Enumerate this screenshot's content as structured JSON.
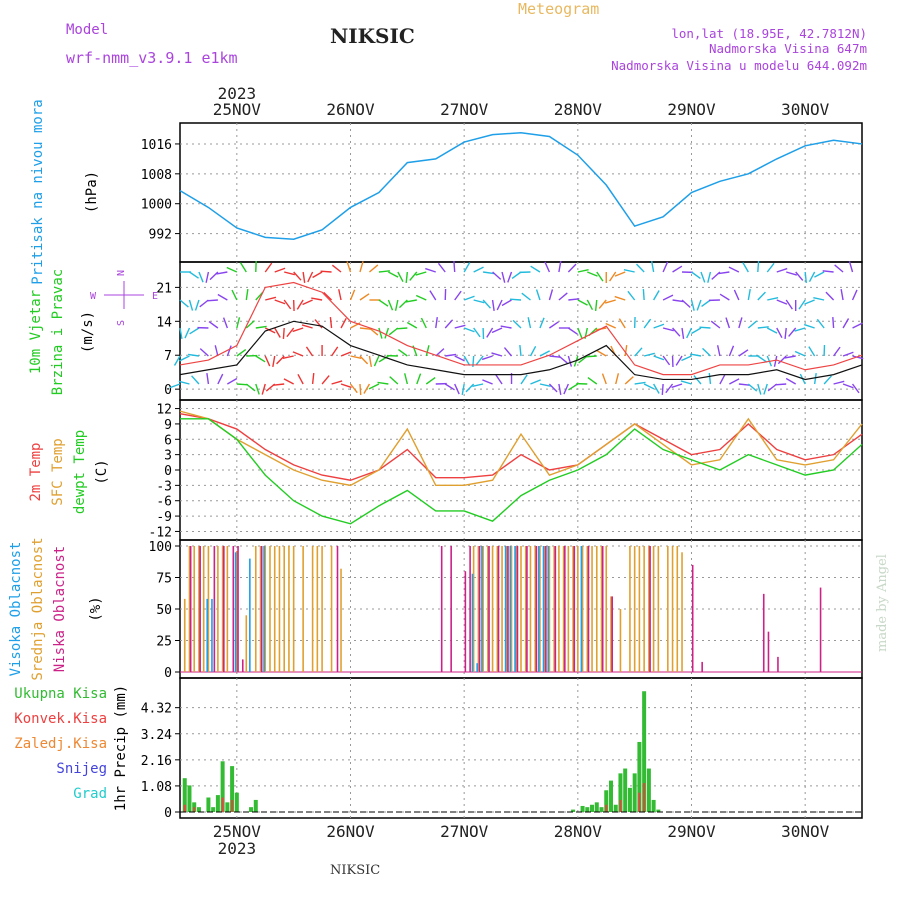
{
  "header": {
    "model_label": "Model",
    "model_name": "wrf-nmm_v3.9.1  e1km",
    "station": "NIKSIC",
    "title": "Meteogram",
    "lonlat": "lon,lat (18.95E, 42.7812N)",
    "elevation": "Nadmorska Visina 647m",
    "model_elevation": "Nadmorska Visina u modelu 644.092m"
  },
  "footer": {
    "station": "NIKSIC",
    "credit": "made by Angel"
  },
  "colors": {
    "pressure": "#1e9fe8",
    "temp2m": "#ee4040",
    "sfc": "#e0a030",
    "dewpt": "#22cc22",
    "high_cloud": "#1e9fe8",
    "mid_cloud": "#e0a030",
    "low_cloud": "#cc2288",
    "total_precip": "#33bb33",
    "conv_precip": "#ee4040",
    "frozen_precip": "#ee8833",
    "snow": "#4444dd",
    "hail": "#22cccc",
    "purple": "#aa44dd"
  },
  "chart_data": [
    {
      "type": "line",
      "panel": "pressure",
      "ylabel": [
        "Pritisak na nivou mora",
        "(hPa)"
      ],
      "yticks": [
        992,
        1000,
        1008,
        1016
      ],
      "ylim": [
        986,
        1020
      ],
      "x_hours": [
        0,
        6,
        12,
        18,
        24,
        30,
        36,
        42,
        48,
        54,
        60,
        66,
        72,
        78,
        84,
        90,
        96,
        102,
        108,
        114,
        120,
        126,
        132,
        138,
        144
      ],
      "series": [
        {
          "values": [
            1003.5,
            999,
            993.5,
            991,
            990.5,
            993,
            999,
            1003,
            1011,
            1012,
            1016.5,
            1018.5,
            1019,
            1018,
            1013,
            1005,
            994,
            996.5,
            1003,
            1006,
            1008,
            1012,
            1015.5,
            1017,
            1016
          ]
        }
      ]
    },
    {
      "type": "line",
      "panel": "wind",
      "ylabel": [
        "10m Vjetar",
        "Brzina i Pravac",
        "(m/s)"
      ],
      "yticks": [
        0,
        7,
        14,
        21
      ],
      "ylim": [
        -1,
        25
      ],
      "legend_compass": [
        "N",
        "W",
        "E",
        "S"
      ],
      "x_hours": [
        0,
        6,
        12,
        18,
        24,
        30,
        36,
        42,
        48,
        54,
        60,
        66,
        72,
        78,
        84,
        90,
        96,
        102,
        108,
        114,
        120,
        126,
        132,
        138,
        144
      ],
      "series": [
        {
          "name": "speed",
          "values": [
            3,
            4,
            5,
            12,
            14,
            13,
            9,
            7,
            5,
            4,
            3,
            3,
            3,
            4,
            6,
            9,
            3,
            2,
            2,
            3,
            3,
            4,
            2,
            3,
            5
          ]
        },
        {
          "name": "gust",
          "values": [
            5,
            6,
            9,
            21,
            22,
            20,
            14,
            12,
            9,
            7,
            5,
            5,
            5,
            7,
            10,
            13,
            5,
            3,
            3,
            5,
            5,
            6,
            4,
            5,
            7
          ]
        }
      ]
    },
    {
      "type": "line",
      "panel": "temperature",
      "ylabel": [
        "2m Temp",
        "SFC Temp",
        "dewpt Temp",
        "(C)"
      ],
      "yticks": [
        -12,
        -9,
        -6,
        -3,
        0,
        3,
        6,
        9,
        12
      ],
      "ylim": [
        -12.5,
        12.5
      ],
      "x_hours": [
        0,
        6,
        12,
        18,
        24,
        30,
        36,
        42,
        48,
        54,
        60,
        66,
        72,
        78,
        84,
        90,
        96,
        102,
        108,
        114,
        120,
        126,
        132,
        138,
        144
      ],
      "series": [
        {
          "name": "2m Temp",
          "values": [
            11,
            10,
            8,
            4,
            1,
            -1,
            -2,
            0,
            4,
            -1.5,
            -1.5,
            -1,
            3,
            0,
            1,
            5,
            9,
            6,
            3,
            4,
            9,
            4,
            2,
            3,
            7
          ]
        },
        {
          "name": "SFC Temp",
          "values": [
            11.5,
            10,
            6,
            3,
            0,
            -2,
            -3,
            0,
            8,
            -3,
            -3,
            -2,
            7,
            -1,
            1,
            5,
            9,
            5,
            1,
            2,
            10,
            2,
            1,
            2,
            9
          ]
        },
        {
          "name": "dewpt Temp",
          "values": [
            10,
            10,
            6,
            -1,
            -6,
            -9,
            -10.5,
            -7,
            -4,
            -8,
            -8,
            -10,
            -5,
            -2,
            0,
            3,
            8,
            4,
            2,
            0,
            3,
            1,
            -1,
            0,
            5
          ]
        }
      ]
    },
    {
      "type": "bar",
      "panel": "cloud",
      "ylabel": [
        "Visoka Oblacnost",
        "Srednja Oblacnost",
        "Niska Oblacnost",
        "(%)"
      ],
      "yticks": [
        0,
        25,
        50,
        75,
        100
      ],
      "ylim": [
        0,
        100
      ],
      "series": [
        {
          "name": "Srednja Oblacnost",
          "bars": [
            [
              1,
              58
            ],
            [
              2,
              100
            ],
            [
              3,
              100
            ],
            [
              4,
              100
            ],
            [
              5,
              100
            ],
            [
              6,
              100
            ],
            [
              8,
              100
            ],
            [
              9,
              100
            ],
            [
              10,
              100
            ],
            [
              12,
              96
            ],
            [
              14,
              45
            ],
            [
              16,
              100
            ],
            [
              17,
              100
            ],
            [
              18,
              100
            ],
            [
              19,
              100
            ],
            [
              20,
              100
            ],
            [
              21,
              100
            ],
            [
              22,
              100
            ],
            [
              23,
              100
            ],
            [
              24,
              100
            ],
            [
              26,
              100
            ],
            [
              28,
              100
            ],
            [
              29,
              100
            ],
            [
              30,
              100
            ],
            [
              32,
              100
            ],
            [
              34,
              82
            ],
            [
              62,
              100
            ],
            [
              63,
              100
            ],
            [
              64,
              100
            ],
            [
              65,
              100
            ],
            [
              66,
              100
            ],
            [
              67,
              100
            ],
            [
              68,
              100
            ],
            [
              69,
              100
            ],
            [
              70,
              100
            ],
            [
              71,
              100
            ],
            [
              72,
              100
            ],
            [
              73,
              100
            ],
            [
              74,
              100
            ],
            [
              75,
              100
            ],
            [
              76,
              100
            ],
            [
              77,
              100
            ],
            [
              78,
              100
            ],
            [
              79,
              100
            ],
            [
              80,
              100
            ],
            [
              81,
              100
            ],
            [
              82,
              100
            ],
            [
              83,
              100
            ],
            [
              84,
              100
            ],
            [
              85,
              100
            ],
            [
              86,
              100
            ],
            [
              87,
              100
            ],
            [
              88,
              100
            ],
            [
              89,
              100
            ],
            [
              90,
              100
            ],
            [
              91,
              60
            ],
            [
              93,
              50
            ],
            [
              95,
              100
            ],
            [
              96,
              100
            ],
            [
              97,
              100
            ],
            [
              98,
              100
            ],
            [
              99,
              100
            ],
            [
              100,
              100
            ],
            [
              101,
              100
            ],
            [
              103,
              100
            ],
            [
              104,
              100
            ],
            [
              105,
              100
            ],
            [
              106,
              95
            ]
          ]
        },
        {
          "name": "Niska Oblacnost",
          "bars": [
            [
              2,
              100
            ],
            [
              4,
              100
            ],
            [
              7,
              100
            ],
            [
              9,
              100
            ],
            [
              11,
              100
            ],
            [
              12,
              100
            ],
            [
              13,
              10
            ],
            [
              17,
              100
            ],
            [
              33,
              100
            ],
            [
              55,
              100
            ],
            [
              57,
              100
            ],
            [
              60,
              80
            ],
            [
              61,
              100
            ],
            [
              63,
              100
            ],
            [
              65,
              100
            ],
            [
              67,
              100
            ],
            [
              69,
              100
            ],
            [
              71,
              100
            ],
            [
              73,
              100
            ],
            [
              75,
              100
            ],
            [
              77,
              100
            ],
            [
              79,
              100
            ],
            [
              81,
              100
            ],
            [
              83,
              100
            ],
            [
              86,
              100
            ],
            [
              89,
              100
            ],
            [
              91,
              60
            ],
            [
              99,
              100
            ],
            [
              108,
              85
            ],
            [
              110,
              8
            ],
            [
              123,
              62
            ],
            [
              124,
              32
            ],
            [
              126,
              12
            ],
            [
              135,
              67
            ]
          ]
        },
        {
          "name": "Visoka Oblacnost",
          "bars": [
            [
              6,
              58
            ],
            [
              7,
              58
            ],
            [
              12,
              95
            ],
            [
              15,
              90
            ],
            [
              18,
              100
            ],
            [
              62,
              78
            ],
            [
              63,
              7
            ],
            [
              64,
              100
            ],
            [
              69,
              100
            ],
            [
              70,
              100
            ],
            [
              71,
              100
            ],
            [
              76,
              100
            ],
            [
              77,
              100
            ],
            [
              78,
              100
            ],
            [
              85,
              100
            ]
          ]
        }
      ]
    },
    {
      "type": "bar",
      "panel": "precipitation",
      "ylabel": [
        "1hr Precip (mm)"
      ],
      "legend": [
        "Ukupna Kisa",
        "Konvek.Kisa",
        "Zaledj.Kisa",
        "Snijeg",
        "Grad"
      ],
      "yticks": [
        0,
        1.08,
        2.16,
        3.24,
        4.32
      ],
      "ylim": [
        0,
        5.3
      ],
      "series": [
        {
          "name": "Ukupna Kisa",
          "bars": [
            [
              1,
              1.4
            ],
            [
              2,
              1.1
            ],
            [
              3,
              0.4
            ],
            [
              4,
              0.2
            ],
            [
              6,
              0.6
            ],
            [
              7,
              0.2
            ],
            [
              8,
              0.7
            ],
            [
              9,
              2.1
            ],
            [
              10,
              0.4
            ],
            [
              11,
              1.9
            ],
            [
              12,
              0.8
            ],
            [
              15,
              0.2
            ],
            [
              16,
              0.5
            ],
            [
              83,
              0.1
            ],
            [
              85,
              0.25
            ],
            [
              86,
              0.2
            ],
            [
              87,
              0.3
            ],
            [
              88,
              0.4
            ],
            [
              89,
              0.2
            ],
            [
              90,
              0.9
            ],
            [
              91,
              1.3
            ],
            [
              92,
              0.3
            ],
            [
              93,
              1.6
            ],
            [
              94,
              1.8
            ],
            [
              95,
              1.0
            ],
            [
              96,
              1.6
            ],
            [
              97,
              2.9
            ],
            [
              98,
              5.0
            ],
            [
              99,
              1.8
            ],
            [
              100,
              0.5
            ],
            [
              101,
              0.1
            ]
          ]
        },
        {
          "name": "Konvek.Kisa",
          "bars": [
            [
              1,
              0.3
            ],
            [
              3,
              0.2
            ],
            [
              9,
              0.6
            ],
            [
              11,
              0.5
            ],
            [
              90,
              0.3
            ],
            [
              93,
              0.5
            ],
            [
              97,
              0.8
            ],
            [
              98,
              1.2
            ]
          ]
        }
      ]
    }
  ],
  "time_axis": {
    "hours_total": 144,
    "days": [
      {
        "label": "25NOV",
        "hour": 12
      },
      {
        "label": "26NOV",
        "hour": 36
      },
      {
        "label": "27NOV",
        "hour": 60
      },
      {
        "label": "28NOV",
        "hour": 84
      },
      {
        "label": "29NOV",
        "hour": 108
      },
      {
        "label": "30NOV",
        "hour": 132
      }
    ],
    "year": "2023"
  }
}
